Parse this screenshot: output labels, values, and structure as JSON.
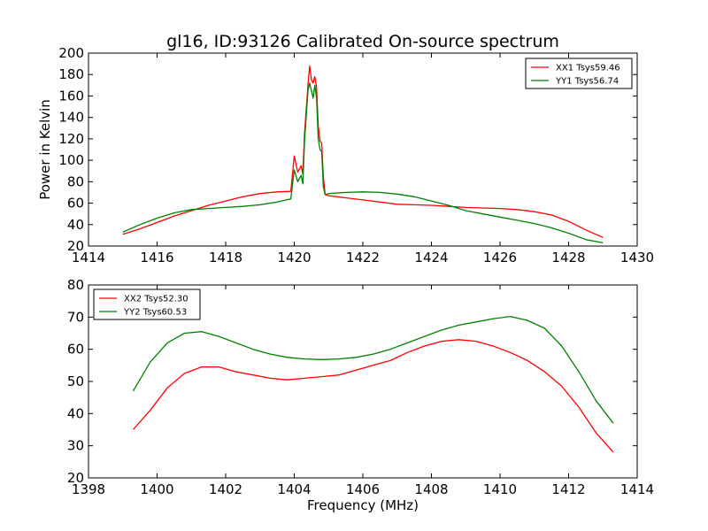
{
  "chart_data": [
    {
      "type": "line",
      "title": "gl16, ID:93126 Calibrated On-source spectrum",
      "xlabel": "",
      "ylabel": "Power in Kelvin",
      "xlim": [
        1414,
        1430
      ],
      "ylim": [
        20,
        200
      ],
      "xticks": [
        1414,
        1416,
        1418,
        1420,
        1422,
        1424,
        1426,
        1428,
        1430
      ],
      "yticks": [
        20,
        40,
        60,
        80,
        100,
        120,
        140,
        160,
        180,
        200
      ],
      "grid": false,
      "legend_position": "top-right",
      "series": [
        {
          "name": "XX1 Tsys59.46",
          "color": "#ff0000",
          "points": [
            [
              1415.0,
              31
            ],
            [
              1415.5,
              36
            ],
            [
              1416.0,
              42
            ],
            [
              1416.5,
              48
            ],
            [
              1417.0,
              53
            ],
            [
              1417.5,
              58
            ],
            [
              1418.0,
              62
            ],
            [
              1418.5,
              66
            ],
            [
              1419.0,
              69
            ],
            [
              1419.5,
              70.5
            ],
            [
              1419.9,
              71
            ],
            [
              1420.0,
              104
            ],
            [
              1420.1,
              89
            ],
            [
              1420.2,
              95
            ],
            [
              1420.25,
              87
            ],
            [
              1420.3,
              125
            ],
            [
              1420.4,
              170
            ],
            [
              1420.45,
              188
            ],
            [
              1420.5,
              175
            ],
            [
              1420.55,
              172
            ],
            [
              1420.6,
              178
            ],
            [
              1420.65,
              168
            ],
            [
              1420.7,
              132
            ],
            [
              1420.75,
              118
            ],
            [
              1420.8,
              116
            ],
            [
              1420.85,
              84
            ],
            [
              1420.9,
              68
            ],
            [
              1421.0,
              67
            ],
            [
              1421.5,
              65
            ],
            [
              1422.0,
              63
            ],
            [
              1422.5,
              61
            ],
            [
              1423.0,
              59
            ],
            [
              1423.5,
              58.5
            ],
            [
              1424.0,
              58
            ],
            [
              1424.5,
              57
            ],
            [
              1425.0,
              56
            ],
            [
              1425.5,
              55.5
            ],
            [
              1426.0,
              55
            ],
            [
              1426.5,
              54
            ],
            [
              1427.0,
              52
            ],
            [
              1427.5,
              49
            ],
            [
              1428.0,
              43
            ],
            [
              1428.5,
              35
            ],
            [
              1429.0,
              28
            ]
          ]
        },
        {
          "name": "YY1 Tsys56.74",
          "color": "#008000",
          "points": [
            [
              1415.0,
              33
            ],
            [
              1415.5,
              40
            ],
            [
              1416.0,
              46
            ],
            [
              1416.5,
              51
            ],
            [
              1417.0,
              54
            ],
            [
              1417.5,
              55
            ],
            [
              1418.0,
              56
            ],
            [
              1418.5,
              57
            ],
            [
              1419.0,
              58.5
            ],
            [
              1419.5,
              61
            ],
            [
              1419.9,
              64
            ],
            [
              1420.0,
              91
            ],
            [
              1420.1,
              80
            ],
            [
              1420.2,
              86
            ],
            [
              1420.25,
              78
            ],
            [
              1420.3,
              118
            ],
            [
              1420.4,
              165
            ],
            [
              1420.45,
              172
            ],
            [
              1420.5,
              165
            ],
            [
              1420.55,
              158
            ],
            [
              1420.6,
              170
            ],
            [
              1420.65,
              158
            ],
            [
              1420.7,
              120
            ],
            [
              1420.75,
              110
            ],
            [
              1420.8,
              108
            ],
            [
              1420.85,
              75
            ],
            [
              1420.9,
              68
            ],
            [
              1421.0,
              69
            ],
            [
              1421.5,
              70
            ],
            [
              1422.0,
              70.5
            ],
            [
              1422.5,
              70
            ],
            [
              1423.0,
              68.5
            ],
            [
              1423.5,
              66
            ],
            [
              1424.0,
              62
            ],
            [
              1424.5,
              58
            ],
            [
              1425.0,
              53
            ],
            [
              1425.5,
              50
            ],
            [
              1426.0,
              47
            ],
            [
              1426.5,
              44
            ],
            [
              1427.0,
              41
            ],
            [
              1427.5,
              37
            ],
            [
              1428.0,
              32
            ],
            [
              1428.5,
              26
            ],
            [
              1429.0,
              23
            ]
          ]
        }
      ]
    },
    {
      "type": "line",
      "title": "",
      "xlabel": "Frequency (MHz)",
      "ylabel": "",
      "xlim": [
        1398,
        1414
      ],
      "ylim": [
        20,
        80
      ],
      "xticks": [
        1398,
        1400,
        1402,
        1404,
        1406,
        1408,
        1410,
        1412,
        1414
      ],
      "yticks": [
        20,
        30,
        40,
        50,
        60,
        70,
        80
      ],
      "grid": false,
      "legend_position": "top-left",
      "series": [
        {
          "name": "XX2 Tsys52.30",
          "color": "#ff0000",
          "points": [
            [
              1399.3,
              35
            ],
            [
              1399.8,
              41
            ],
            [
              1400.3,
              48
            ],
            [
              1400.8,
              52.5
            ],
            [
              1401.3,
              54.5
            ],
            [
              1401.8,
              54.5
            ],
            [
              1402.3,
              53
            ],
            [
              1402.8,
              52
            ],
            [
              1403.3,
              51
            ],
            [
              1403.8,
              50.5
            ],
            [
              1404.3,
              51
            ],
            [
              1404.8,
              51.5
            ],
            [
              1405.3,
              52
            ],
            [
              1405.8,
              53.5
            ],
            [
              1406.3,
              55
            ],
            [
              1406.8,
              56.5
            ],
            [
              1407.3,
              59
            ],
            [
              1407.8,
              61
            ],
            [
              1408.3,
              62.5
            ],
            [
              1408.8,
              63
            ],
            [
              1409.3,
              62.5
            ],
            [
              1409.8,
              61
            ],
            [
              1410.3,
              59
            ],
            [
              1410.8,
              56.5
            ],
            [
              1411.3,
              53
            ],
            [
              1411.8,
              48.5
            ],
            [
              1412.3,
              42
            ],
            [
              1412.8,
              34
            ],
            [
              1413.3,
              28
            ]
          ]
        },
        {
          "name": "YY2 Tsys60.53",
          "color": "#008000",
          "points": [
            [
              1399.3,
              47
            ],
            [
              1399.8,
              56
            ],
            [
              1400.3,
              62
            ],
            [
              1400.8,
              65
            ],
            [
              1401.3,
              65.5
            ],
            [
              1401.8,
              64
            ],
            [
              1402.3,
              62
            ],
            [
              1402.8,
              60
            ],
            [
              1403.3,
              58.5
            ],
            [
              1403.8,
              57.5
            ],
            [
              1404.3,
              57
            ],
            [
              1404.8,
              56.8
            ],
            [
              1405.3,
              57
            ],
            [
              1405.8,
              57.5
            ],
            [
              1406.3,
              58.5
            ],
            [
              1406.8,
              60
            ],
            [
              1407.3,
              62
            ],
            [
              1407.8,
              64
            ],
            [
              1408.3,
              66
            ],
            [
              1408.8,
              67.5
            ],
            [
              1409.3,
              68.5
            ],
            [
              1409.8,
              69.5
            ],
            [
              1410.3,
              70.2
            ],
            [
              1410.8,
              69
            ],
            [
              1411.3,
              66.5
            ],
            [
              1411.8,
              61
            ],
            [
              1412.3,
              53
            ],
            [
              1412.8,
              44
            ],
            [
              1413.3,
              37
            ]
          ]
        }
      ]
    }
  ]
}
